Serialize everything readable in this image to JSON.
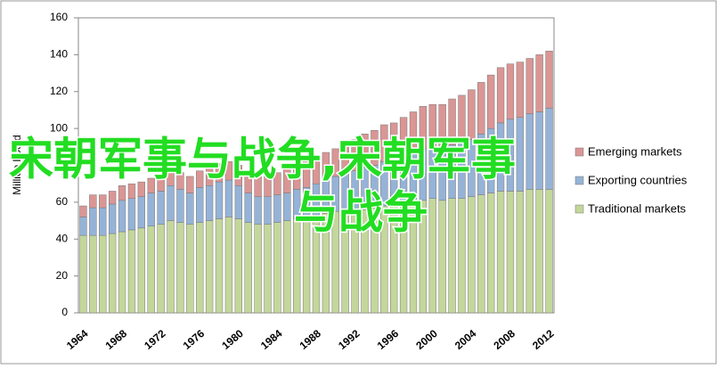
{
  "chart_data": {
    "type": "stacked_bar",
    "ylabel": "Million boe/d",
    "categories": [
      "1964",
      null,
      null,
      null,
      "1968",
      null,
      null,
      null,
      "1972",
      null,
      null,
      null,
      "1976",
      null,
      null,
      null,
      "1980",
      null,
      null,
      null,
      "1984",
      null,
      null,
      null,
      "1988",
      null,
      null,
      null,
      "1992",
      null,
      null,
      null,
      "1996",
      null,
      null,
      null,
      "2000",
      null,
      null,
      null,
      "2004",
      null,
      null,
      null,
      "2008",
      null,
      null,
      null,
      "2012"
    ],
    "series": [
      {
        "name": "Traditional markets",
        "color": "#c4d79b",
        "values": [
          42,
          42,
          42,
          43,
          44,
          45,
          46,
          47,
          48,
          50,
          49,
          48,
          49,
          50,
          51,
          52,
          51,
          49,
          48,
          48,
          49,
          50,
          51,
          52,
          53,
          54,
          55,
          56,
          55,
          56,
          57,
          58,
          58,
          59,
          60,
          61,
          62,
          61,
          62,
          62,
          63,
          64,
          65,
          66,
          66,
          66,
          67,
          67,
          67
        ]
      },
      {
        "name": "Exporting countries",
        "color": "#95b3d7",
        "values": [
          10,
          15,
          15,
          16,
          17,
          17,
          17,
          18,
          18,
          19,
          18,
          17,
          19,
          19,
          20,
          20,
          18,
          16,
          15,
          15,
          15,
          15,
          16,
          16,
          17,
          18,
          19,
          20,
          22,
          23,
          23,
          24,
          25,
          26,
          27,
          28,
          28,
          28,
          29,
          30,
          31,
          33,
          35,
          37,
          39,
          40,
          41,
          42,
          44
        ]
      },
      {
        "name": "Emerging markets",
        "color": "#da9694",
        "values": [
          6,
          7,
          7,
          7,
          8,
          8,
          8,
          8,
          8,
          8,
          9,
          9,
          9,
          10,
          10,
          10,
          11,
          11,
          11,
          12,
          12,
          13,
          13,
          14,
          14,
          15,
          15,
          16,
          17,
          18,
          19,
          20,
          20,
          21,
          22,
          23,
          23,
          24,
          25,
          26,
          27,
          28,
          29,
          30,
          30,
          30,
          30,
          31,
          31
        ]
      }
    ],
    "ylim": [
      0,
      160
    ],
    "yticks": [
      0,
      20,
      40,
      60,
      80,
      100,
      120,
      140,
      160
    ],
    "legend": "right"
  },
  "overlay_text": [
    "宋朝军事与战争,宋朝军事",
    "与战争"
  ]
}
